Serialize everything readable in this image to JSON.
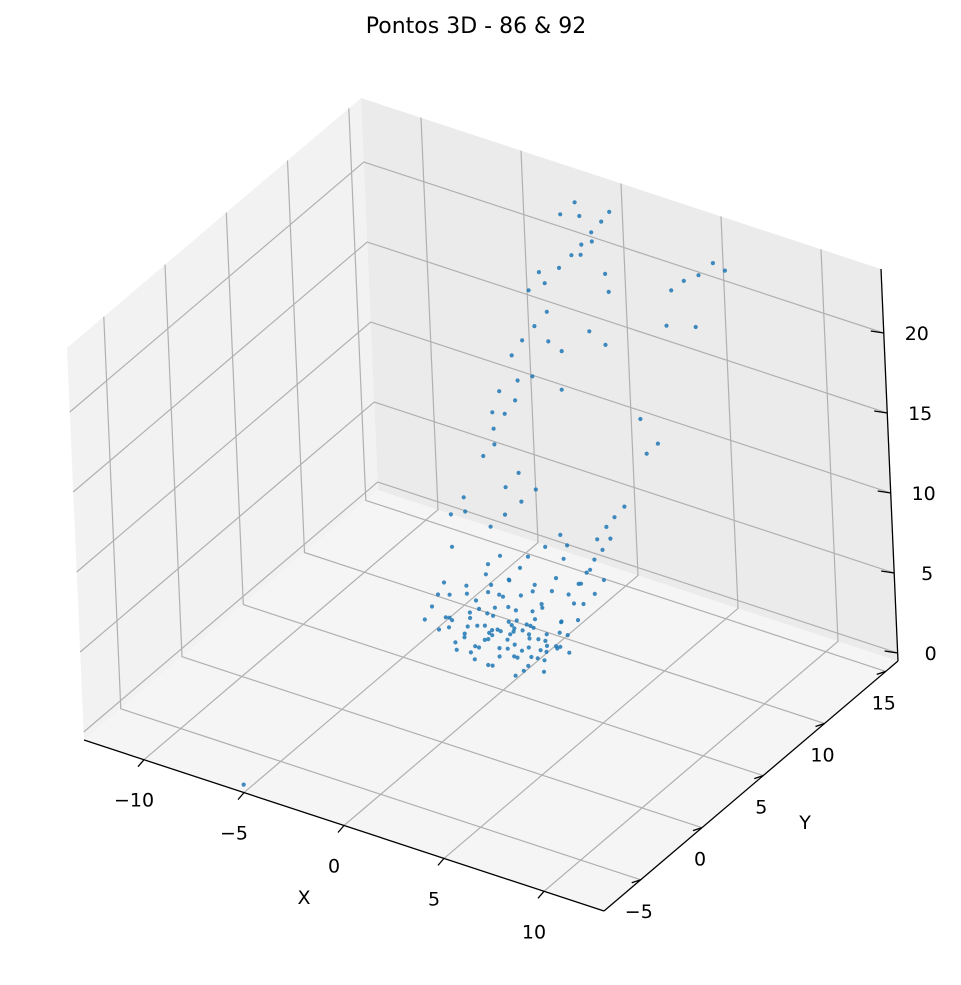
{
  "chart_data": {
    "type": "scatter",
    "projection": "3d",
    "title": "Pontos 3D - 86 & 92",
    "xlabel": "X",
    "ylabel": "Y",
    "zlabel": "",
    "xlim": [
      -13,
      13
    ],
    "ylim": [
      -8,
      16
    ],
    "zlim": [
      -0.5,
      24
    ],
    "xticks": [
      -10,
      -5,
      0,
      5,
      10
    ],
    "yticks": [
      -5,
      0,
      5,
      10,
      15
    ],
    "zticks": [
      0,
      5,
      10,
      15,
      20
    ],
    "xtick_labels": [
      "−10",
      "−5",
      "0",
      "5",
      "10"
    ],
    "ytick_labels": [
      "−5",
      "0",
      "5",
      "10",
      "15"
    ],
    "ztick_labels": [
      "0",
      "5",
      "10",
      "15",
      "20"
    ],
    "grid": true,
    "legend": false,
    "marker_color": "#1f77b4",
    "pane_colors": {
      "xz_back": "#ebebeb",
      "yz_left": "#f2f2f2",
      "xy_floor": "#f5f5f5"
    },
    "grid_color": "#b0b0b0",
    "series": [
      {
        "points": [
          [
            -2.8,
            6.5,
            0.9
          ],
          [
            -2.4,
            6.9,
            1.3
          ],
          [
            -2.1,
            6.2,
            0.6
          ],
          [
            -1.9,
            7.4,
            1.8
          ],
          [
            -1.6,
            6.8,
            1.1
          ],
          [
            -1.3,
            7.7,
            2.4
          ],
          [
            -1.0,
            6.4,
            0.8
          ],
          [
            -0.7,
            7.1,
            1.5
          ],
          [
            -0.4,
            6.6,
            0.4
          ],
          [
            -0.1,
            7.9,
            2.0
          ],
          [
            0.2,
            6.3,
            1.2
          ],
          [
            0.5,
            7.3,
            0.7
          ],
          [
            0.8,
            6.7,
            1.9
          ],
          [
            1.1,
            7.6,
            1.0
          ],
          [
            1.4,
            6.1,
            0.5
          ],
          [
            1.7,
            7.0,
            1.6
          ],
          [
            -2.6,
            7.2,
            2.6
          ],
          [
            -2.2,
            6.0,
            0.3
          ],
          [
            -1.8,
            7.8,
            2.9
          ],
          [
            -1.4,
            6.5,
            1.7
          ],
          [
            -1.1,
            7.2,
            0.2
          ],
          [
            -0.8,
            6.9,
            2.2
          ],
          [
            -0.5,
            7.5,
            1.4
          ],
          [
            -0.2,
            6.2,
            2.7
          ],
          [
            0.1,
            7.0,
            0.9
          ],
          [
            0.4,
            6.6,
            2.1
          ],
          [
            0.7,
            7.4,
            1.3
          ],
          [
            1.0,
            6.8,
            0.6
          ],
          [
            1.3,
            7.8,
            2.5
          ],
          [
            -2.5,
            6.3,
            1.6
          ],
          [
            -2.0,
            7.1,
            0.5
          ],
          [
            -1.5,
            6.1,
            2.2
          ],
          [
            -1.2,
            7.6,
            0.8
          ],
          [
            -0.9,
            6.4,
            1.9
          ],
          [
            -0.6,
            7.2,
            2.8
          ],
          [
            -0.3,
            6.7,
            0.3
          ],
          [
            0.0,
            7.6,
            1.7
          ],
          [
            0.3,
            6.9,
            2.4
          ],
          [
            0.6,
            6.4,
            0.9
          ],
          [
            0.9,
            7.2,
            1.2
          ],
          [
            -2.9,
            5.9,
            0.7
          ],
          [
            -2.3,
            5.7,
            1.4
          ],
          [
            -1.7,
            5.5,
            0.4
          ],
          [
            -1.1,
            5.8,
            2.1
          ],
          [
            -0.5,
            5.6,
            1.0
          ],
          [
            0.1,
            5.9,
            1.8
          ],
          [
            0.7,
            5.6,
            0.6
          ],
          [
            1.3,
            5.8,
            1.5
          ],
          [
            -2.7,
            8.2,
            1.1
          ],
          [
            -2.0,
            8.4,
            2.3
          ],
          [
            -1.3,
            8.1,
            0.8
          ],
          [
            -0.6,
            8.5,
            1.9
          ],
          [
            0.1,
            8.2,
            2.6
          ],
          [
            0.8,
            8.4,
            1.2
          ],
          [
            1.5,
            8.0,
            0.5
          ],
          [
            -1.9,
            8.8,
            3.1
          ],
          [
            -0.8,
            8.9,
            2.8
          ],
          [
            0.3,
            8.7,
            3.4
          ],
          [
            1.4,
            8.3,
            3.9
          ],
          [
            1.8,
            8.5,
            4.6
          ],
          [
            2.1,
            8.7,
            5.3
          ],
          [
            2.4,
            8.9,
            6.1
          ],
          [
            2.7,
            9.1,
            6.7
          ],
          [
            3.0,
            9.3,
            7.4
          ],
          [
            2.2,
            9.5,
            6.9
          ],
          [
            2.5,
            9.8,
            7.6
          ],
          [
            2.8,
            10.0,
            8.2
          ],
          [
            3.2,
            10.2,
            8.9
          ],
          [
            1.6,
            9.0,
            4.2
          ],
          [
            1.9,
            9.3,
            5.0
          ],
          [
            -1.6,
            8.3,
            3.6
          ],
          [
            -1.2,
            8.6,
            4.3
          ],
          [
            -0.9,
            8.8,
            5.0
          ],
          [
            -0.2,
            9.1,
            5.7
          ],
          [
            0.4,
            9.4,
            6.5
          ],
          [
            -3.5,
            4.5,
            2.8
          ],
          [
            -3.3,
            4.8,
            3.5
          ],
          [
            -3.1,
            5.0,
            4.2
          ],
          [
            -2.9,
            5.2,
            4.9
          ],
          [
            -0.6,
            8.0,
            1.4
          ],
          [
            -2.3,
            7.6,
            4.1
          ],
          [
            -1.8,
            8.0,
            5.2
          ],
          [
            -2.6,
            8.6,
            6.3
          ],
          [
            -2.1,
            9.0,
            7.0
          ],
          [
            -1.5,
            9.4,
            7.8
          ],
          [
            -1.0,
            9.8,
            8.5
          ],
          [
            1.1,
            6.9,
            2.2
          ],
          [
            1.6,
            7.3,
            2.9
          ],
          [
            -3.0,
            9.8,
            10.5
          ],
          [
            -3.2,
            10.1,
            11.2
          ],
          [
            -2.8,
            10.4,
            12.1
          ],
          [
            -2.5,
            10.8,
            12.8
          ],
          [
            -3.4,
            9.5,
            9.8
          ],
          [
            -2.9,
            10.2,
            13.6
          ],
          [
            -2.2,
            10.6,
            14.3
          ],
          [
            -3.1,
            9.9,
            12.4
          ],
          [
            -2.4,
            11.4,
            16.2
          ],
          [
            -2.0,
            11.8,
            17.0
          ],
          [
            -1.6,
            12.2,
            17.8
          ],
          [
            -2.7,
            11.0,
            15.4
          ],
          [
            -1.2,
            11.6,
            16.5
          ],
          [
            -0.8,
            12.0,
            15.8
          ],
          [
            -1.9,
            12.6,
            19.2
          ],
          [
            -1.4,
            13.0,
            20.1
          ],
          [
            -2.6,
            12.4,
            18.6
          ],
          [
            -2.3,
            12.8,
            19.6
          ],
          [
            -1.0,
            13.4,
            20.8
          ],
          [
            -0.6,
            13.6,
            21.5
          ],
          [
            -0.2,
            13.8,
            22.3
          ],
          [
            0.2,
            14.0,
            23.0
          ],
          [
            0.5,
            14.2,
            23.6
          ],
          [
            -0.4,
            13.2,
            21.2
          ],
          [
            0.0,
            13.5,
            22.0
          ],
          [
            -1.8,
            13.9,
            22.7
          ],
          [
            -1.3,
            14.3,
            23.4
          ],
          [
            -0.9,
            14.0,
            22.9
          ],
          [
            0.8,
            13.2,
            20.5
          ],
          [
            1.2,
            12.8,
            19.8
          ],
          [
            0.9,
            11.6,
            18.0
          ],
          [
            1.5,
            11.9,
            17.2
          ],
          [
            3.6,
            14.0,
            20.1
          ],
          [
            4.0,
            14.4,
            20.6
          ],
          [
            4.5,
            14.8,
            20.9
          ],
          [
            5.0,
            15.2,
            21.6
          ],
          [
            5.4,
            15.5,
            21.1
          ],
          [
            3.8,
            13.2,
            18.5
          ],
          [
            4.7,
            14.1,
            18.2
          ],
          [
            3.3,
            11.6,
            13.5
          ],
          [
            3.8,
            11.2,
            11.8
          ],
          [
            4.2,
            11.5,
            12.4
          ],
          [
            -1.7,
            11.0,
            14.5
          ],
          [
            -0.5,
            11.4,
            13.9
          ],
          [
            -2.4,
            9.6,
            8.2
          ],
          [
            -1.9,
            9.9,
            9.1
          ],
          [
            -3.6,
            8.2,
            7.1
          ],
          [
            -3.9,
            8.6,
            7.6
          ],
          [
            -4.2,
            8.0,
            6.8
          ],
          [
            -3.7,
            7.2,
            5.5
          ],
          [
            -2.8,
            6.8,
            3.7
          ],
          [
            -2.1,
            7.4,
            3.2
          ],
          [
            -1.4,
            6.8,
            2.9
          ],
          [
            -0.7,
            7.8,
            3.3
          ],
          [
            0.6,
            8.6,
            4.4
          ],
          [
            0.2,
            8.0,
            3.0
          ],
          [
            -3.4,
            6.0,
            2.0
          ],
          [
            -3.6,
            6.6,
            1.5
          ],
          [
            -3.8,
            7.0,
            2.6
          ],
          [
            -3.2,
            7.6,
            1.0
          ],
          [
            -3.9,
            6.2,
            0.9
          ],
          [
            -3.5,
            7.9,
            2.2
          ],
          [
            2.2,
            8.2,
            3.7
          ],
          [
            2.6,
            8.5,
            4.3
          ],
          [
            2.9,
            8.8,
            5.1
          ],
          [
            1.2,
            9.0,
            2.8
          ],
          [
            -1.0,
            5.8,
            0.1
          ],
          [
            0.4,
            5.4,
            0.3
          ],
          [
            -0.9,
            5.3,
            0.5
          ],
          [
            1.8,
            6.6,
            1.8
          ],
          [
            2.1,
            7.0,
            2.5
          ],
          [
            2.4,
            7.4,
            3.3
          ],
          [
            -0.3,
            8.3,
            3.8
          ],
          [
            0.9,
            8.8,
            5.6
          ],
          [
            1.3,
            8.5,
            6.8
          ],
          [
            -2.1,
            5.9,
            2.9
          ],
          [
            -1.5,
            5.7,
            3.5
          ],
          [
            -1.8,
            7.2,
            3.9
          ],
          [
            -2.3,
            7.8,
            4.6
          ],
          [
            -1.6,
            6.2,
            1.2
          ],
          [
            -0.8,
            6.0,
            2.3
          ],
          [
            0.0,
            6.3,
            3.0
          ],
          [
            0.8,
            6.0,
            2.4
          ],
          [
            -3.0,
            5.6,
            1.8
          ],
          [
            -2.7,
            5.4,
            2.5
          ],
          [
            -2.4,
            5.2,
            0.9
          ],
          [
            -1.2,
            5.1,
            1.6
          ],
          [
            0.2,
            5.2,
            2.6
          ],
          [
            1.0,
            5.5,
            1.1
          ],
          [
            1.7,
            5.9,
            2.0
          ],
          [
            -5.0,
            -8.0,
            0.0
          ]
        ]
      }
    ]
  }
}
